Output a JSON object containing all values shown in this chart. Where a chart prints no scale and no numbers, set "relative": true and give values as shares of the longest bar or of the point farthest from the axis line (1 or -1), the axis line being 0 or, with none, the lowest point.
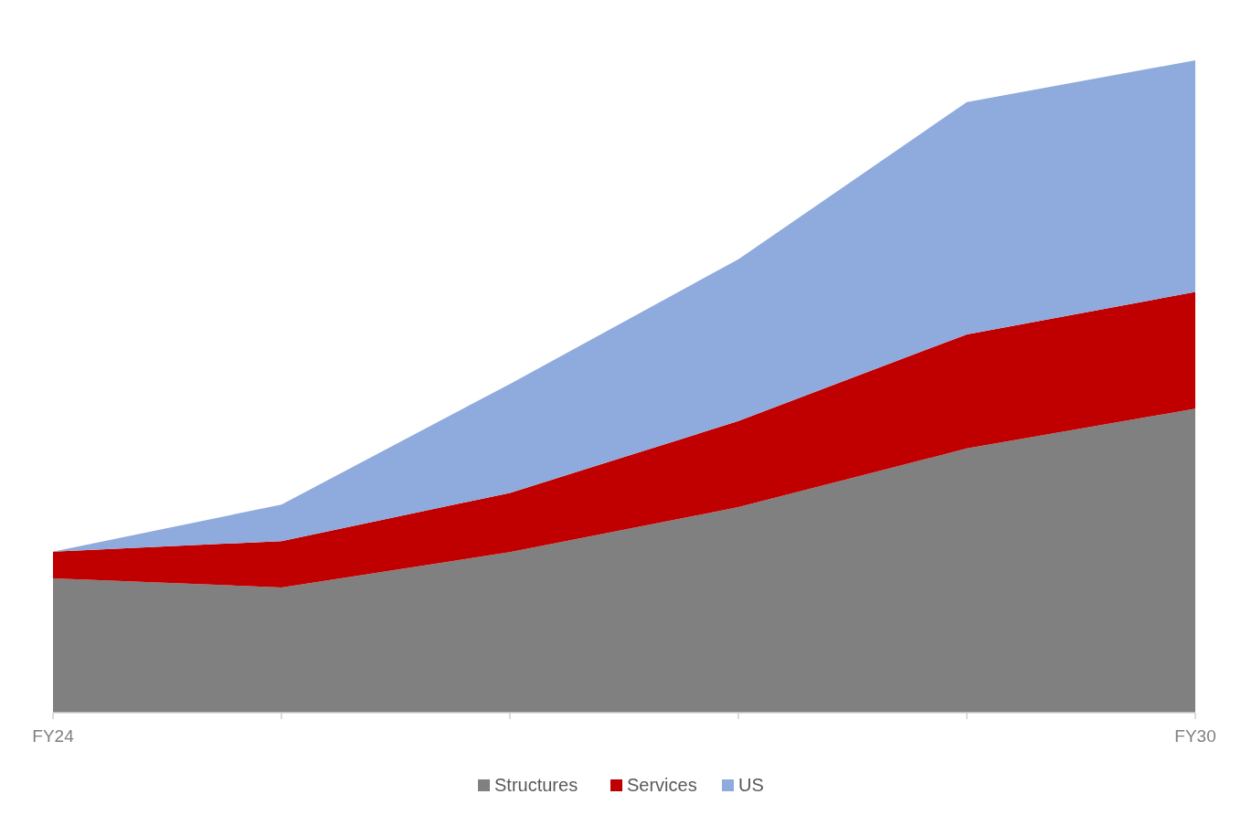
{
  "chart_data": {
    "type": "area",
    "stacked": true,
    "relative": true,
    "legend": "bottom",
    "categories": [
      "FY24",
      null,
      null,
      null,
      null,
      "FY30"
    ],
    "series": [
      {
        "name": "Structures",
        "color": "#808080",
        "values": [
          0.206,
          0.192,
          0.246,
          0.315,
          0.405,
          0.466
        ]
      },
      {
        "name": "Services",
        "color": "#c00000",
        "values": [
          0.041,
          0.071,
          0.091,
          0.132,
          0.175,
          0.179
        ]
      },
      {
        "name": "US",
        "color": "#8faadc",
        "values": [
          0,
          0.056,
          0.167,
          0.248,
          0.356,
          0.355
        ]
      }
    ]
  }
}
